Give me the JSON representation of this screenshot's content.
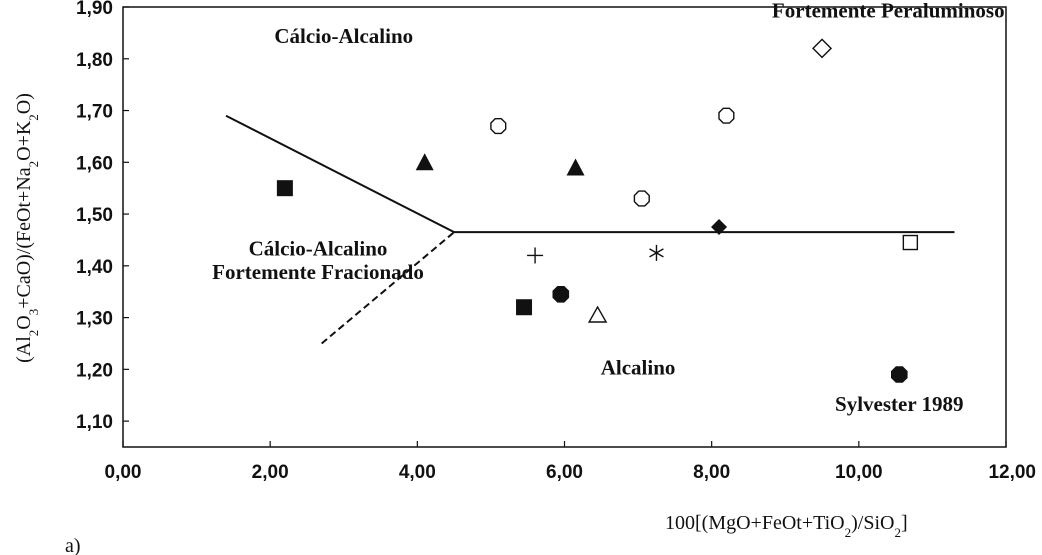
{
  "chart_data": {
    "type": "scatter",
    "title": "",
    "xlabel_parts": [
      {
        "t": "100[(MgO+FeOt+TiO",
        "s": ""
      },
      {
        "t": "2",
        "s": "sub"
      },
      {
        "t": ")/SiO",
        "s": ""
      },
      {
        "t": "2",
        "s": "sub"
      },
      {
        "t": "]",
        "s": ""
      }
    ],
    "ylabel_parts": [
      {
        "t": "(Al",
        "s": ""
      },
      {
        "t": "2",
        "s": "sub"
      },
      {
        "t": "O",
        "s": ""
      },
      {
        "t": "3",
        "s": "sub"
      },
      {
        "t": "+CaO)/(FeOt+Na",
        "s": ""
      },
      {
        "t": "2",
        "s": "sub"
      },
      {
        "t": "O+K",
        "s": ""
      },
      {
        "t": "2",
        "s": "sub"
      },
      {
        "t": "O)",
        "s": ""
      }
    ],
    "xlim": [
      0,
      12
    ],
    "ylim": [
      1.05,
      1.9
    ],
    "x_ticks": [
      {
        "v": 0,
        "label": "0,00"
      },
      {
        "v": 2,
        "label": "2,00"
      },
      {
        "v": 4,
        "label": "4,00"
      },
      {
        "v": 6,
        "label": "6,00"
      },
      {
        "v": 8,
        "label": "8,00"
      },
      {
        "v": 10,
        "label": "10,00"
      },
      {
        "v": 12,
        "label": "12,00"
      }
    ],
    "y_ticks": [
      {
        "v": 1.1,
        "label": "1,10"
      },
      {
        "v": 1.2,
        "label": "1,20"
      },
      {
        "v": 1.3,
        "label": "1,30"
      },
      {
        "v": 1.4,
        "label": "1,40"
      },
      {
        "v": 1.5,
        "label": "1,50"
      },
      {
        "v": 1.6,
        "label": "1,60"
      },
      {
        "v": 1.7,
        "label": "1,70"
      },
      {
        "v": 1.8,
        "label": "1,80"
      },
      {
        "v": 1.9,
        "label": "1,90"
      }
    ],
    "boundaries": [
      {
        "style": "solid",
        "points": [
          [
            1.4,
            1.69
          ],
          [
            4.5,
            1.465
          ],
          [
            11.3,
            1.465
          ]
        ]
      },
      {
        "style": "dashed",
        "points": [
          [
            2.7,
            1.25
          ],
          [
            4.5,
            1.465
          ]
        ]
      }
    ],
    "region_labels": [
      {
        "text": "Cálcio-Alcalino",
        "x": 3.0,
        "y": 1.83
      },
      {
        "text": "Fortemente Peraluminoso",
        "x": 10.4,
        "y": 1.88
      },
      {
        "text": "Cálcio-Alcalino",
        "x": 2.65,
        "y": 1.42
      },
      {
        "text": "Fortemente Fracionado",
        "x": 2.65,
        "y": 1.375
      },
      {
        "text": "Alcalino",
        "x": 7.0,
        "y": 1.19
      },
      {
        "text": "Sylvester 1989",
        "x": 10.55,
        "y": 1.12
      }
    ],
    "points": [
      {
        "marker": "filled-square",
        "x": 2.2,
        "y": 1.55
      },
      {
        "marker": "filled-square",
        "x": 5.45,
        "y": 1.32
      },
      {
        "marker": "filled-triangle",
        "x": 4.1,
        "y": 1.6
      },
      {
        "marker": "filled-triangle",
        "x": 6.15,
        "y": 1.59
      },
      {
        "marker": "open-octagon",
        "x": 5.1,
        "y": 1.67
      },
      {
        "marker": "open-octagon",
        "x": 7.05,
        "y": 1.53
      },
      {
        "marker": "open-octagon",
        "x": 8.2,
        "y": 1.69
      },
      {
        "marker": "open-diamond",
        "x": 9.5,
        "y": 1.82
      },
      {
        "marker": "filled-diamond",
        "x": 8.1,
        "y": 1.475
      },
      {
        "marker": "open-square",
        "x": 10.7,
        "y": 1.445
      },
      {
        "marker": "plus",
        "x": 5.6,
        "y": 1.42
      },
      {
        "marker": "asterisk",
        "x": 7.25,
        "y": 1.425
      },
      {
        "marker": "filled-octagon",
        "x": 5.95,
        "y": 1.345
      },
      {
        "marker": "filled-octagon",
        "x": 10.55,
        "y": 1.19
      },
      {
        "marker": "open-triangle",
        "x": 6.45,
        "y": 1.305
      }
    ],
    "panel_label": "a)"
  }
}
